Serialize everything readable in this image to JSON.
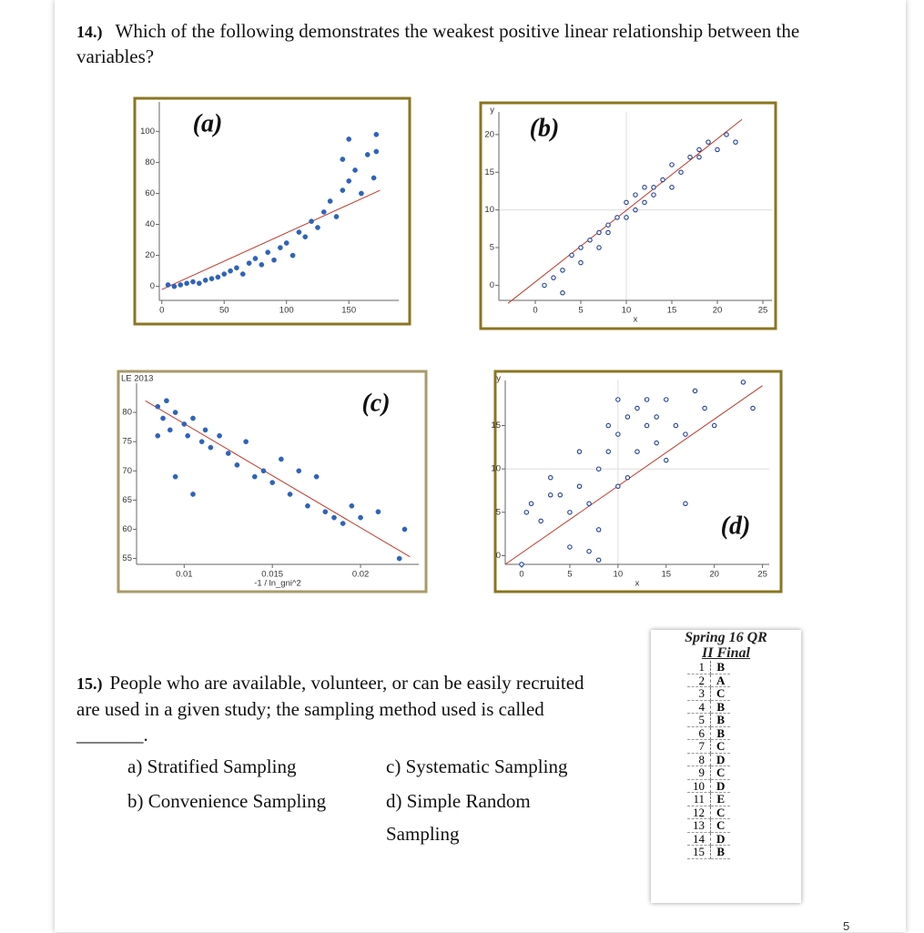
{
  "question_14": {
    "number": "14.)",
    "text": "Which of the following demonstrates the weakest positive linear relationship between the variables?"
  },
  "plots": [
    {
      "label": "(a)",
      "marker": "filled",
      "color": "#2f63b8",
      "frame_color": "#8a7620",
      "line_color": "#c0392b",
      "xlim": [
        -2,
        190
      ],
      "ylim": [
        -9,
        119
      ],
      "xticks": [
        0,
        50,
        100,
        150
      ],
      "yticks": [
        0,
        20,
        40,
        60,
        80,
        100
      ],
      "x": [
        5,
        10,
        15,
        20,
        25,
        30,
        35,
        40,
        45,
        50,
        55,
        60,
        65,
        70,
        75,
        80,
        85,
        90,
        95,
        100,
        105,
        110,
        115,
        120,
        125,
        130,
        135,
        140,
        145,
        150,
        155,
        160,
        165,
        170,
        145,
        172,
        150,
        172
      ],
      "y": [
        1,
        0,
        1,
        2,
        3,
        2,
        4,
        5,
        6,
        8,
        10,
        12,
        8,
        15,
        18,
        14,
        22,
        17,
        25,
        28,
        20,
        35,
        32,
        42,
        38,
        48,
        55,
        45,
        62,
        68,
        75,
        60,
        85,
        70,
        82,
        98,
        95,
        87
      ],
      "fit_line": {
        "x": [
          0,
          175
        ],
        "y": [
          -2,
          62
        ]
      }
    },
    {
      "label": "(b)",
      "marker": "open",
      "color": "#1f3f8f",
      "frame_color": "#8a7620",
      "line_color": "#c0392b",
      "x_label": "x",
      "y_label": "y",
      "reference_lines": {
        "x": 10,
        "y": 10
      },
      "xlim": [
        -4,
        26
      ],
      "ylim": [
        -2,
        23
      ],
      "xticks": [
        0,
        5,
        10,
        15,
        20,
        25
      ],
      "yticks": [
        0,
        5,
        10,
        15,
        20
      ],
      "x": [
        1,
        2,
        3,
        4,
        5,
        5,
        6,
        7,
        8,
        8,
        9,
        10,
        10,
        11,
        11,
        12,
        13,
        13,
        14,
        15,
        15,
        16,
        17,
        18,
        18,
        19,
        20,
        21,
        22,
        3,
        7,
        12
      ],
      "y": [
        0,
        1,
        2,
        4,
        3,
        5,
        6,
        5,
        8,
        7,
        9,
        9,
        11,
        10,
        12,
        11,
        13,
        12,
        14,
        13,
        16,
        15,
        17,
        17,
        18,
        19,
        18,
        20,
        19,
        -1,
        7,
        13
      ],
      "fit_line": {
        "x": [
          -3,
          22.7
        ],
        "y": [
          -2.4,
          22
        ]
      }
    },
    {
      "label": "(c)",
      "marker": "filled",
      "color": "#2f63b8",
      "frame_color": "#a89a6a",
      "line_color": "#c0392b",
      "x_label": "-1 / ln_gni^2",
      "y_label": "LE 2013",
      "xlim": [
        0.0073,
        0.0233
      ],
      "ylim": [
        54,
        85
      ],
      "xticks": [
        0.01,
        0.015,
        0.02
      ],
      "yticks": [
        55,
        60,
        65,
        70,
        75,
        80
      ],
      "x": [
        0.0085,
        0.0088,
        0.009,
        0.0092,
        0.0095,
        0.01,
        0.0102,
        0.0105,
        0.011,
        0.0112,
        0.0115,
        0.012,
        0.0125,
        0.013,
        0.0135,
        0.014,
        0.0145,
        0.015,
        0.0155,
        0.016,
        0.0165,
        0.017,
        0.0175,
        0.018,
        0.0185,
        0.019,
        0.0195,
        0.02,
        0.021,
        0.0225,
        0.0222,
        0.0095,
        0.0085,
        0.0105
      ],
      "y": [
        81,
        79,
        82,
        77,
        80,
        78,
        76,
        79,
        75,
        77,
        74,
        76,
        73,
        71,
        75,
        69,
        70,
        68,
        72,
        66,
        70,
        64,
        69,
        63,
        62,
        61,
        64,
        62,
        63,
        60,
        55,
        69,
        76,
        66
      ],
      "fit_line": {
        "x": [
          0.0078,
          0.0228
        ],
        "y": [
          82,
          55.3
        ]
      }
    },
    {
      "label": "(d)",
      "marker": "open",
      "color": "#1f3f8f",
      "frame_color": "#8a7620",
      "line_color": "#c0392b",
      "x_label": "x",
      "y_label": "y",
      "reference_lines": {
        "x": 10,
        "y": 10
      },
      "xlim": [
        -1.7,
        25.7
      ],
      "ylim": [
        -1,
        20.2
      ],
      "xticks": [
        0,
        5,
        10,
        15,
        20,
        25
      ],
      "yticks": [
        0,
        5,
        10,
        15
      ],
      "x": [
        0,
        0.5,
        1,
        2,
        3,
        3,
        4,
        5,
        5,
        6,
        6,
        7,
        8,
        8,
        9,
        9,
        10,
        10,
        10,
        11,
        11,
        12,
        12,
        13,
        13,
        14,
        14,
        15,
        15,
        16,
        17,
        18,
        19,
        20,
        23,
        24,
        17,
        8,
        7
      ],
      "y": [
        -1,
        5,
        6,
        4,
        9,
        7,
        7,
        1,
        5,
        8,
        12,
        6,
        10,
        3,
        15,
        12,
        14,
        8,
        18,
        9,
        16,
        17,
        12,
        15,
        18,
        13,
        16,
        11,
        18,
        15,
        14,
        19,
        17,
        15,
        20,
        17,
        6,
        -0.5,
        0.5
      ],
      "fit_line": {
        "x": [
          -1.7,
          25
        ],
        "y": [
          -1,
          19.6
        ]
      }
    }
  ],
  "question_15": {
    "number": "15.)",
    "text": "People who are available, volunteer, or can be easily recruited are used in a given study; the sampling method used is called _______.",
    "options": [
      "a) Stratified Sampling",
      "c) Systematic Sampling",
      "b) Convenience Sampling",
      "d) Simple Random Sampling"
    ]
  },
  "answer_key": {
    "title": "Spring 16 QR",
    "subtitle": "II Final",
    "rows": [
      [
        1,
        "B"
      ],
      [
        2,
        "A"
      ],
      [
        3,
        "C"
      ],
      [
        4,
        "B"
      ],
      [
        5,
        "B"
      ],
      [
        6,
        "B"
      ],
      [
        7,
        "C"
      ],
      [
        8,
        "D"
      ],
      [
        9,
        "C"
      ],
      [
        10,
        "D"
      ],
      [
        11,
        "E"
      ],
      [
        12,
        "C"
      ],
      [
        13,
        "C"
      ],
      [
        14,
        "D"
      ],
      [
        15,
        "B"
      ]
    ]
  },
  "page_number": 5
}
